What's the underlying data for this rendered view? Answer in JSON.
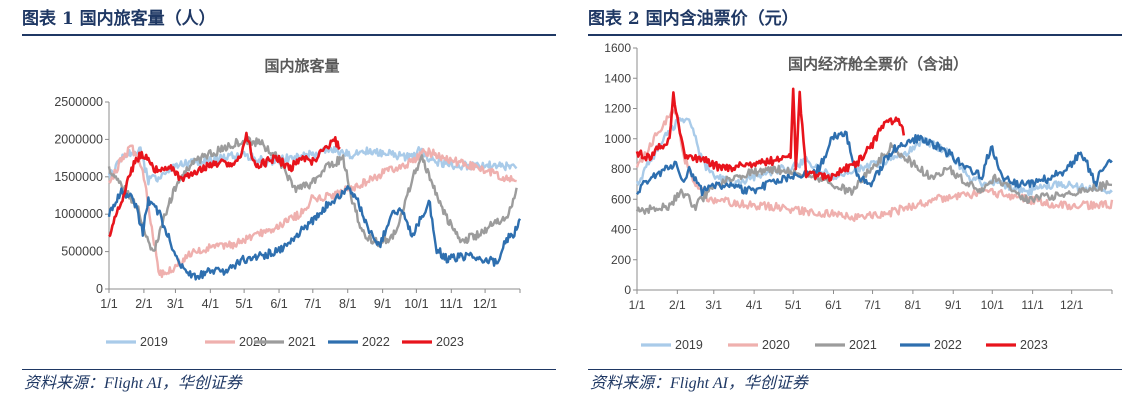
{
  "panels": [
    {
      "figure_title": "图表 1  国内旅客量（人）",
      "source": "资料来源：Flight AI，华创证券"
    },
    {
      "figure_title": "图表 2  国内含油票价（元）",
      "source": "资料来源：Flight AI，华创证券"
    }
  ],
  "chart_data": [
    {
      "type": "line",
      "title": "国内旅客量",
      "xlabel": "",
      "ylabel": "",
      "ylim": [
        0,
        2500000
      ],
      "yticks": [
        0,
        500000,
        1000000,
        1500000,
        2000000,
        2500000
      ],
      "ytick_labels": [
        "0",
        "500000",
        "1000000",
        "1500000",
        "2000000",
        "2500000"
      ],
      "xlim": [
        0,
        365
      ],
      "xtick_positions": [
        0,
        31,
        59,
        90,
        120,
        151,
        181,
        212,
        243,
        273,
        304,
        334
      ],
      "xtick_labels": [
        "1/1",
        "2/1",
        "3/1",
        "4/1",
        "5/1",
        "6/1",
        "7/1",
        "8/1",
        "9/1",
        "10/1",
        "11/1",
        "12/1"
      ],
      "legend_position": "bottom",
      "series": [
        {
          "name": "2019",
          "color": "#a9cbe9",
          "x": [
            0,
            15,
            28,
            35,
            45,
            60,
            80,
            100,
            120,
            140,
            160,
            180,
            200,
            215,
            230,
            250,
            270,
            275,
            290,
            310,
            330,
            350,
            362
          ],
          "y": [
            1500000,
            1800000,
            1850000,
            1450000,
            1500000,
            1650000,
            1700000,
            1750000,
            1800000,
            1700000,
            1750000,
            1800000,
            1850000,
            1800000,
            1850000,
            1800000,
            1750000,
            1850000,
            1700000,
            1650000,
            1650000,
            1650000,
            1600000
          ]
        },
        {
          "name": "2020",
          "color": "#efb0ae",
          "x": [
            0,
            10,
            20,
            30,
            38,
            45,
            55,
            70,
            90,
            110,
            130,
            150,
            170,
            180,
            200,
            215,
            230,
            250,
            270,
            280,
            300,
            320,
            340,
            362
          ],
          "y": [
            1400000,
            1700000,
            1900000,
            1600000,
            800000,
            200000,
            250000,
            450000,
            550000,
            600000,
            700000,
            850000,
            1000000,
            1200000,
            1250000,
            1350000,
            1450000,
            1600000,
            1700000,
            1850000,
            1750000,
            1650000,
            1550000,
            1450000
          ]
        },
        {
          "name": "2021",
          "color": "#9c9c9c",
          "x": [
            0,
            10,
            25,
            35,
            40,
            50,
            60,
            75,
            90,
            105,
            120,
            135,
            150,
            165,
            180,
            195,
            208,
            215,
            225,
            240,
            255,
            270,
            278,
            290,
            300,
            312,
            325,
            340,
            355,
            362
          ],
          "y": [
            1600000,
            1400000,
            1100000,
            600000,
            500000,
            1000000,
            1400000,
            1700000,
            1800000,
            1900000,
            2000000,
            1950000,
            1750000,
            1350000,
            1400000,
            1650000,
            1750000,
            1250000,
            750000,
            600000,
            750000,
            1500000,
            1750000,
            1300000,
            950000,
            650000,
            700000,
            850000,
            1000000,
            1300000
          ]
        },
        {
          "name": "2022",
          "color": "#2e6faf",
          "x": [
            0,
            10,
            22,
            30,
            35,
            45,
            55,
            65,
            75,
            90,
            100,
            110,
            120,
            135,
            150,
            165,
            180,
            195,
            205,
            212,
            220,
            225,
            232,
            240,
            250,
            260,
            270,
            278,
            285,
            290,
            300,
            320,
            335,
            345,
            352,
            360,
            365
          ],
          "y": [
            1000000,
            1300000,
            1200000,
            750000,
            1200000,
            1000000,
            600000,
            300000,
            150000,
            250000,
            220000,
            300000,
            400000,
            450000,
            500000,
            700000,
            900000,
            1150000,
            1250000,
            1350000,
            1200000,
            1000000,
            750000,
            550000,
            1000000,
            1050000,
            700000,
            1000000,
            1150000,
            550000,
            400000,
            450000,
            400000,
            350000,
            650000,
            750000,
            900000
          ]
        },
        {
          "name": "2023",
          "color": "#e8141c",
          "x": [
            0,
            5,
            10,
            15,
            20,
            25,
            30,
            35,
            45,
            55,
            65,
            75,
            90,
            100,
            110,
            118,
            122,
            130,
            140,
            150,
            160,
            170,
            180,
            190,
            200,
            205
          ],
          "y": [
            650000,
            950000,
            1150000,
            1350000,
            1600000,
            1750000,
            1800000,
            1700000,
            1550000,
            1650000,
            1450000,
            1550000,
            1650000,
            1700000,
            1650000,
            1800000,
            2050000,
            1650000,
            1700000,
            1750000,
            1600000,
            1750000,
            1700000,
            1850000,
            2000000,
            1900000
          ]
        }
      ]
    },
    {
      "type": "line",
      "title": "国内经济舱全票价（含油）",
      "xlabel": "",
      "ylabel": "",
      "ylim": [
        0,
        1600
      ],
      "yticks": [
        0,
        200,
        400,
        600,
        800,
        1000,
        1200,
        1400,
        1600
      ],
      "ytick_labels": [
        "0",
        "200",
        "400",
        "600",
        "800",
        "1000",
        "1200",
        "1400",
        "1600"
      ],
      "xlim": [
        0,
        365
      ],
      "xtick_positions": [
        0,
        31,
        59,
        90,
        120,
        151,
        181,
        212,
        243,
        273,
        304,
        334
      ],
      "xtick_labels": [
        "1/1",
        "2/1",
        "3/1",
        "4/1",
        "5/1",
        "6/1",
        "7/1",
        "8/1",
        "9/1",
        "10/1",
        "11/1",
        "12/1"
      ],
      "legend_position": "bottom",
      "series": [
        {
          "name": "2019",
          "color": "#a9cbe9",
          "x": [
            0,
            10,
            20,
            30,
            40,
            50,
            60,
            75,
            90,
            110,
            120,
            130,
            150,
            170,
            190,
            205,
            220,
            240,
            255,
            265,
            280,
            300,
            320,
            340,
            365
          ],
          "y": [
            700,
            850,
            1000,
            1100,
            1150,
            850,
            750,
            700,
            750,
            800,
            820,
            850,
            750,
            800,
            850,
            900,
            1000,
            900,
            750,
            700,
            700,
            650,
            700,
            680,
            650
          ]
        },
        {
          "name": "2020",
          "color": "#efb0ae",
          "x": [
            0,
            10,
            20,
            30,
            35,
            45,
            55,
            70,
            90,
            110,
            130,
            150,
            170,
            190,
            210,
            230,
            250,
            270,
            290,
            310,
            330,
            350,
            365
          ],
          "y": [
            800,
            950,
            1100,
            1200,
            900,
            700,
            600,
            580,
            560,
            550,
            520,
            500,
            480,
            500,
            550,
            600,
            620,
            650,
            620,
            580,
            560,
            560,
            570
          ]
        },
        {
          "name": "2021",
          "color": "#9c9c9c",
          "x": [
            0,
            15,
            25,
            35,
            45,
            60,
            75,
            90,
            105,
            120,
            135,
            150,
            165,
            180,
            195,
            210,
            225,
            240,
            255,
            265,
            275,
            290,
            300,
            320,
            340,
            365
          ],
          "y": [
            520,
            540,
            560,
            650,
            550,
            700,
            750,
            780,
            800,
            780,
            750,
            700,
            650,
            800,
            950,
            850,
            750,
            800,
            700,
            650,
            750,
            650,
            600,
            620,
            650,
            700
          ]
        },
        {
          "name": "2022",
          "color": "#2e6faf",
          "x": [
            0,
            10,
            20,
            30,
            35,
            40,
            50,
            60,
            75,
            90,
            105,
            120,
            130,
            140,
            150,
            160,
            170,
            180,
            190,
            200,
            212,
            225,
            240,
            255,
            265,
            272,
            280,
            295,
            310,
            320,
            330,
            340,
            345,
            352,
            358,
            365
          ],
          "y": [
            650,
            750,
            780,
            850,
            700,
            800,
            650,
            700,
            680,
            650,
            720,
            750,
            780,
            800,
            1000,
            1050,
            750,
            700,
            850,
            950,
            1000,
            980,
            900,
            800,
            750,
            950,
            750,
            700,
            720,
            750,
            800,
            900,
            850,
            700,
            800,
            880
          ]
        },
        {
          "name": "2023",
          "color": "#e8141c",
          "x": [
            0,
            10,
            18,
            25,
            28,
            32,
            36,
            40,
            50,
            60,
            70,
            80,
            90,
            100,
            110,
            118,
            120,
            122,
            125,
            130,
            135,
            140,
            150,
            160,
            170,
            180,
            190,
            200,
            205
          ],
          "y": [
            900,
            880,
            950,
            1000,
            1280,
            1100,
            900,
            880,
            870,
            820,
            800,
            820,
            840,
            850,
            860,
            900,
            1350,
            800,
            1300,
            760,
            760,
            750,
            740,
            800,
            850,
            950,
            1100,
            1130,
            1050
          ]
        }
      ]
    }
  ]
}
